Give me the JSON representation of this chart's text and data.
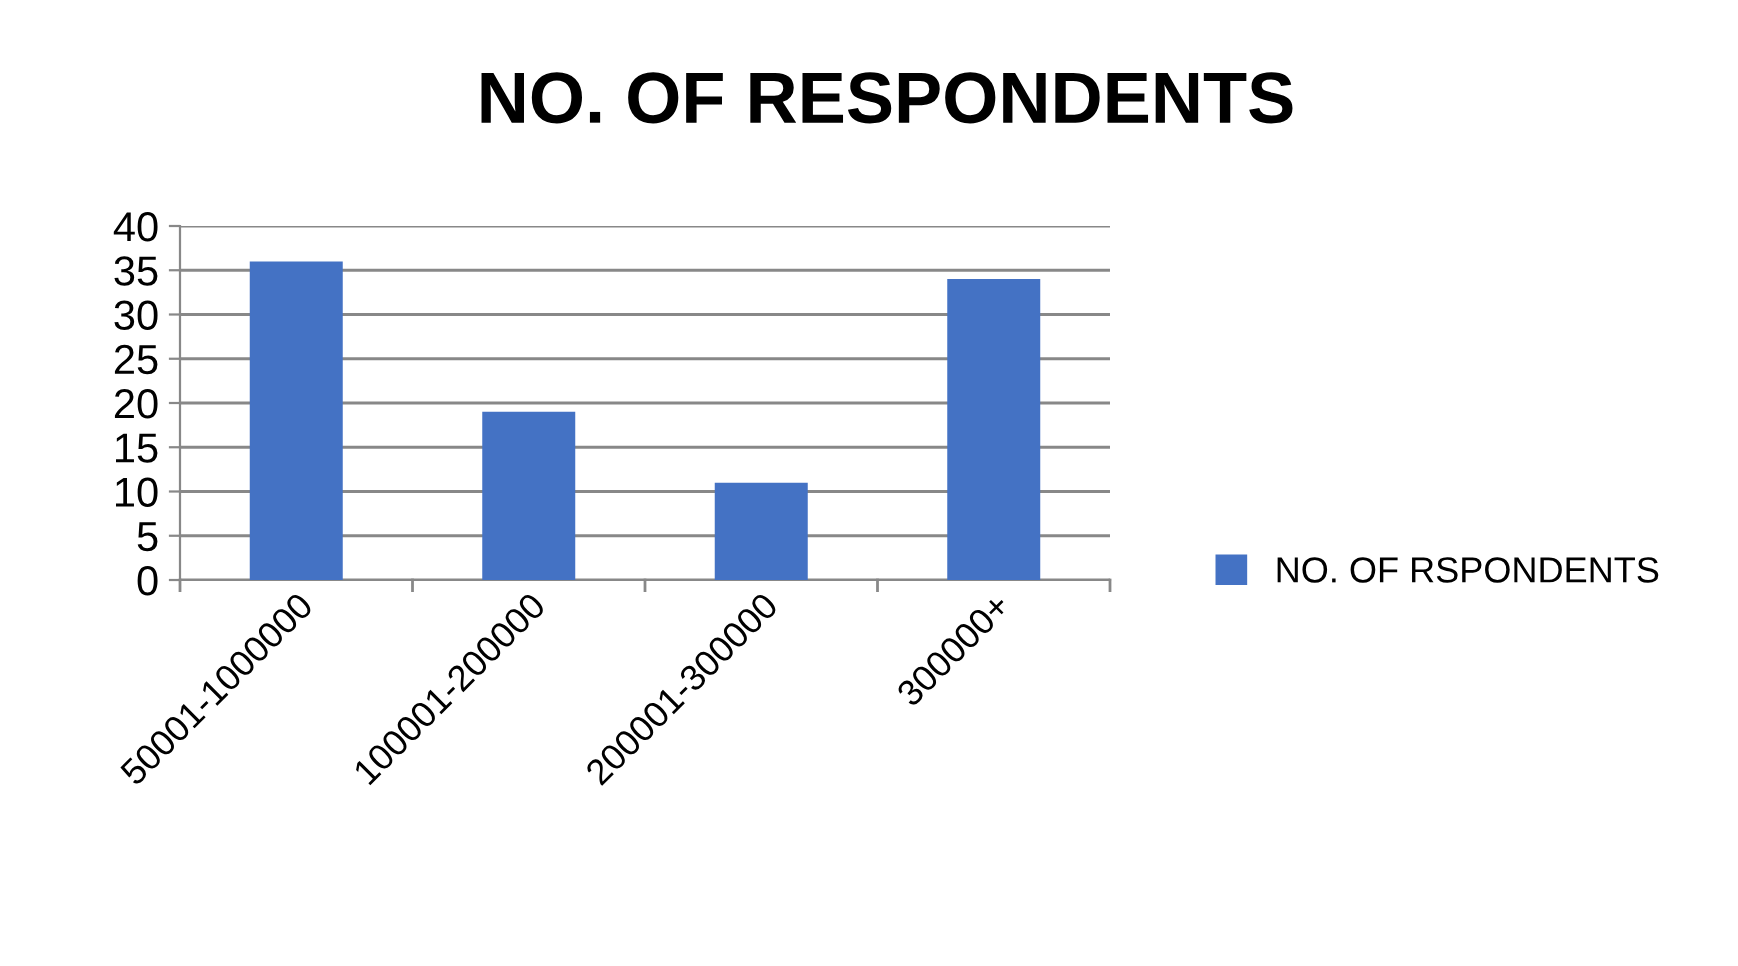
{
  "chart_data": {
    "type": "bar",
    "title": "NO. OF RESPONDENTS",
    "categories": [
      "50001-1000000",
      "100001-200000",
      "200001-300000",
      "300000+"
    ],
    "series": [
      {
        "name": "NO. OF RSPONDENTS",
        "color": "#4472c4",
        "values": [
          36,
          19,
          11,
          34
        ]
      }
    ],
    "ylim": [
      0,
      40
    ],
    "yticks": [
      0,
      5,
      10,
      15,
      20,
      25,
      30,
      35,
      40
    ],
    "grid": "y",
    "legend": "right"
  }
}
